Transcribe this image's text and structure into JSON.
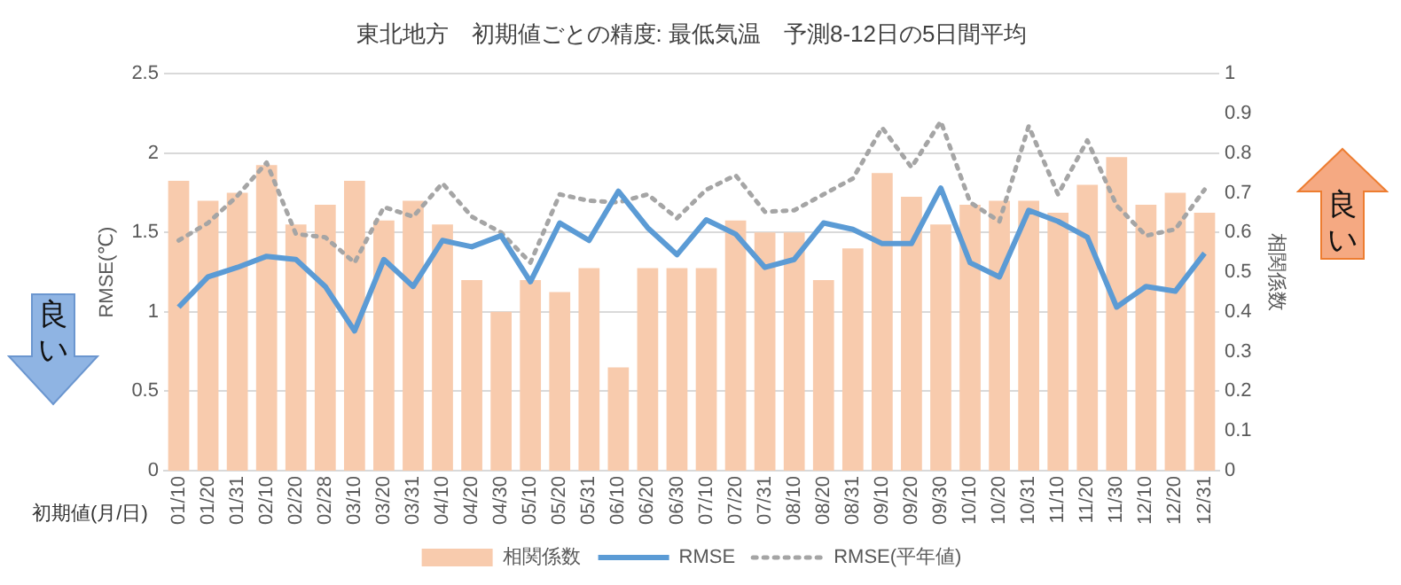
{
  "chart_data": {
    "type": "bar",
    "title": "東北地方　初期値ごとの精度: 最低気温　予測8-12日の5日間平均",
    "xlabel": "初期値(月/日)",
    "ylabel": "RMSE(℃)",
    "y2label": "相関係数",
    "categories": [
      "01/10",
      "01/20",
      "01/31",
      "02/10",
      "02/20",
      "02/28",
      "03/10",
      "03/20",
      "03/31",
      "04/10",
      "04/20",
      "04/30",
      "05/10",
      "05/20",
      "05/31",
      "06/10",
      "06/20",
      "06/30",
      "07/10",
      "07/20",
      "07/31",
      "08/10",
      "08/20",
      "08/31",
      "09/10",
      "09/20",
      "09/30",
      "10/10",
      "10/20",
      "10/31",
      "11/10",
      "11/20",
      "11/30",
      "12/10",
      "12/20",
      "12/31"
    ],
    "series": [
      {
        "name": "相関係数",
        "axis": "y2",
        "color": "#f8cbad",
        "values": [
          0.73,
          0.68,
          0.7,
          0.77,
          0.62,
          0.67,
          0.73,
          0.63,
          0.68,
          0.62,
          0.48,
          0.4,
          0.48,
          0.45,
          0.51,
          0.26,
          0.51,
          0.51,
          0.51,
          0.63,
          0.6,
          0.6,
          0.48,
          0.56,
          0.75,
          0.69,
          0.62,
          0.67,
          0.68,
          0.68,
          0.65,
          0.72,
          0.79,
          0.67,
          0.7,
          0.65
        ]
      },
      {
        "name": "RMSE",
        "type": "line",
        "color": "#5b9bd5",
        "line_style": "solid",
        "values": [
          1.03,
          1.22,
          1.28,
          1.35,
          1.33,
          1.16,
          0.88,
          1.33,
          1.16,
          1.45,
          1.41,
          1.48,
          1.19,
          1.56,
          1.45,
          1.76,
          1.53,
          1.36,
          1.58,
          1.49,
          1.28,
          1.33,
          1.56,
          1.52,
          1.43,
          1.43,
          1.78,
          1.31,
          1.22,
          1.64,
          1.57,
          1.47,
          1.03,
          1.16,
          1.13,
          1.37
        ]
      },
      {
        "name": "RMSE(平年値)",
        "type": "line",
        "color": "#a5a5a5",
        "line_style": "dotted",
        "values": [
          1.45,
          1.56,
          1.73,
          1.94,
          1.49,
          1.47,
          1.31,
          1.66,
          1.6,
          1.81,
          1.6,
          1.5,
          1.31,
          1.74,
          1.7,
          1.69,
          1.74,
          1.59,
          1.77,
          1.86,
          1.63,
          1.64,
          1.74,
          1.84,
          2.16,
          1.91,
          2.2,
          1.69,
          1.57,
          2.17,
          1.74,
          2.08,
          1.67,
          1.48,
          1.52,
          1.77
        ]
      }
    ],
    "ylim": [
      0,
      2.5
    ],
    "yticks": [
      0,
      0.5,
      1,
      1.5,
      2,
      2.5
    ],
    "y2lim": [
      0,
      1
    ],
    "y2ticks": [
      0,
      0.1,
      0.2,
      0.3,
      0.4,
      0.5,
      0.6,
      0.7,
      0.8,
      0.9,
      1
    ],
    "grid": "y",
    "legend": "bottom",
    "marker": "none",
    "annotations": [
      "良い",
      "良い"
    ]
  }
}
